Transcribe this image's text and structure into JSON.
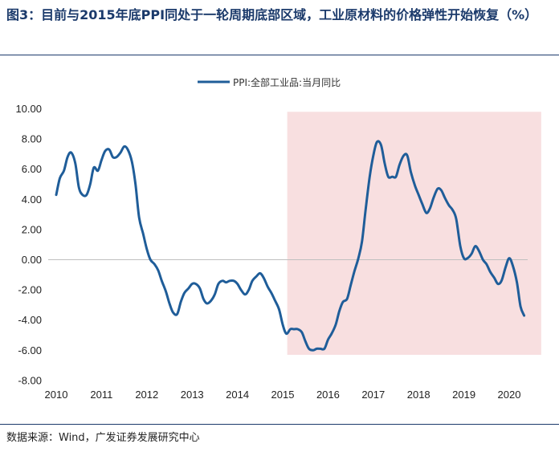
{
  "header": {
    "title": "图3：目前与2015年底PPI同处于一轮周期底部区域，工业原材料的价格弹性开始恢复（%）"
  },
  "footer": {
    "source": "数据来源：Wind，广发证券发展研究中心"
  },
  "colors": {
    "line": "#1f5d99",
    "shade": "#f8dfe0",
    "zero_line": "#bfbfbf",
    "title": "#1b3a6b"
  },
  "chart_data": {
    "type": "line",
    "title": "",
    "xlabel": "",
    "ylabel": "",
    "ylim": [
      -8,
      10
    ],
    "xlim": [
      2010,
      2020.6
    ],
    "yticks": [
      "10.00",
      "8.00",
      "6.00",
      "4.00",
      "2.00",
      "0.00",
      "-2.00",
      "-4.00",
      "-6.00",
      "-8.00"
    ],
    "ytick_values": [
      10,
      8,
      6,
      4,
      2,
      0,
      -2,
      -4,
      -6,
      -8
    ],
    "xticks": [
      "2010",
      "2011",
      "2012",
      "2013",
      "2014",
      "2015",
      "2016",
      "2017",
      "2018",
      "2019",
      "2020"
    ],
    "xtick_values": [
      2010,
      2011,
      2012,
      2013,
      2014,
      2015,
      2016,
      2017,
      2018,
      2019,
      2020
    ],
    "grid": false,
    "legend": {
      "position": "top-center"
    },
    "shaded_region": {
      "x_start": 2015.1,
      "x_end": 2020.6,
      "y_start": -6.3,
      "y_end": 9.8
    },
    "series": [
      {
        "name": "PPI:全部工业品:当月同比",
        "points": [
          [
            2010.0,
            4.3
          ],
          [
            2010.08,
            5.4
          ],
          [
            2010.17,
            5.9
          ],
          [
            2010.25,
            6.8
          ],
          [
            2010.33,
            7.1
          ],
          [
            2010.42,
            6.4
          ],
          [
            2010.5,
            4.8
          ],
          [
            2010.58,
            4.3
          ],
          [
            2010.67,
            4.3
          ],
          [
            2010.75,
            5.0
          ],
          [
            2010.83,
            6.1
          ],
          [
            2010.92,
            5.9
          ],
          [
            2011.0,
            6.6
          ],
          [
            2011.08,
            7.2
          ],
          [
            2011.17,
            7.3
          ],
          [
            2011.25,
            6.8
          ],
          [
            2011.33,
            6.8
          ],
          [
            2011.42,
            7.1
          ],
          [
            2011.5,
            7.5
          ],
          [
            2011.58,
            7.3
          ],
          [
            2011.67,
            6.5
          ],
          [
            2011.75,
            5.0
          ],
          [
            2011.83,
            2.8
          ],
          [
            2011.92,
            1.7
          ],
          [
            2012.0,
            0.7
          ],
          [
            2012.08,
            0.0
          ],
          [
            2012.17,
            -0.3
          ],
          [
            2012.25,
            -0.7
          ],
          [
            2012.33,
            -1.4
          ],
          [
            2012.42,
            -2.1
          ],
          [
            2012.5,
            -2.9
          ],
          [
            2012.58,
            -3.5
          ],
          [
            2012.67,
            -3.6
          ],
          [
            2012.75,
            -2.8
          ],
          [
            2012.83,
            -2.2
          ],
          [
            2012.92,
            -1.9
          ],
          [
            2013.0,
            -1.6
          ],
          [
            2013.08,
            -1.6
          ],
          [
            2013.17,
            -1.9
          ],
          [
            2013.25,
            -2.6
          ],
          [
            2013.33,
            -2.9
          ],
          [
            2013.42,
            -2.7
          ],
          [
            2013.5,
            -2.3
          ],
          [
            2013.58,
            -1.6
          ],
          [
            2013.67,
            -1.4
          ],
          [
            2013.75,
            -1.5
          ],
          [
            2013.83,
            -1.4
          ],
          [
            2013.92,
            -1.4
          ],
          [
            2014.0,
            -1.6
          ],
          [
            2014.08,
            -2.0
          ],
          [
            2014.17,
            -2.3
          ],
          [
            2014.25,
            -2.0
          ],
          [
            2014.33,
            -1.4
          ],
          [
            2014.42,
            -1.1
          ],
          [
            2014.5,
            -0.9
          ],
          [
            2014.58,
            -1.2
          ],
          [
            2014.67,
            -1.8
          ],
          [
            2014.75,
            -2.2
          ],
          [
            2014.83,
            -2.7
          ],
          [
            2014.92,
            -3.3
          ],
          [
            2015.0,
            -4.3
          ],
          [
            2015.08,
            -4.9
          ],
          [
            2015.17,
            -4.6
          ],
          [
            2015.25,
            -4.6
          ],
          [
            2015.33,
            -4.6
          ],
          [
            2015.42,
            -4.8
          ],
          [
            2015.5,
            -5.4
          ],
          [
            2015.58,
            -5.9
          ],
          [
            2015.67,
            -6.0
          ],
          [
            2015.75,
            -5.9
          ],
          [
            2015.83,
            -5.9
          ],
          [
            2015.92,
            -5.9
          ],
          [
            2016.0,
            -5.3
          ],
          [
            2016.08,
            -4.9
          ],
          [
            2016.17,
            -4.3
          ],
          [
            2016.25,
            -3.4
          ],
          [
            2016.33,
            -2.8
          ],
          [
            2016.42,
            -2.6
          ],
          [
            2016.5,
            -1.7
          ],
          [
            2016.58,
            -0.8
          ],
          [
            2016.67,
            0.1
          ],
          [
            2016.75,
            1.2
          ],
          [
            2016.83,
            3.3
          ],
          [
            2016.92,
            5.5
          ],
          [
            2017.0,
            6.9
          ],
          [
            2017.08,
            7.8
          ],
          [
            2017.17,
            7.6
          ],
          [
            2017.25,
            6.4
          ],
          [
            2017.33,
            5.5
          ],
          [
            2017.42,
            5.5
          ],
          [
            2017.5,
            5.5
          ],
          [
            2017.58,
            6.3
          ],
          [
            2017.67,
            6.9
          ],
          [
            2017.75,
            6.9
          ],
          [
            2017.83,
            5.8
          ],
          [
            2017.92,
            4.9
          ],
          [
            2018.0,
            4.3
          ],
          [
            2018.08,
            3.7
          ],
          [
            2018.17,
            3.1
          ],
          [
            2018.25,
            3.4
          ],
          [
            2018.33,
            4.1
          ],
          [
            2018.42,
            4.7
          ],
          [
            2018.5,
            4.6
          ],
          [
            2018.58,
            4.1
          ],
          [
            2018.67,
            3.6
          ],
          [
            2018.75,
            3.3
          ],
          [
            2018.83,
            2.7
          ],
          [
            2018.92,
            0.9
          ],
          [
            2019.0,
            0.1
          ],
          [
            2019.08,
            0.1
          ],
          [
            2019.17,
            0.4
          ],
          [
            2019.25,
            0.9
          ],
          [
            2019.33,
            0.6
          ],
          [
            2019.42,
            0.0
          ],
          [
            2019.5,
            -0.3
          ],
          [
            2019.58,
            -0.8
          ],
          [
            2019.67,
            -1.2
          ],
          [
            2019.75,
            -1.6
          ],
          [
            2019.83,
            -1.4
          ],
          [
            2019.92,
            -0.5
          ],
          [
            2020.0,
            0.1
          ],
          [
            2020.08,
            -0.4
          ],
          [
            2020.17,
            -1.5
          ],
          [
            2020.25,
            -3.1
          ],
          [
            2020.33,
            -3.7
          ]
        ]
      }
    ]
  }
}
